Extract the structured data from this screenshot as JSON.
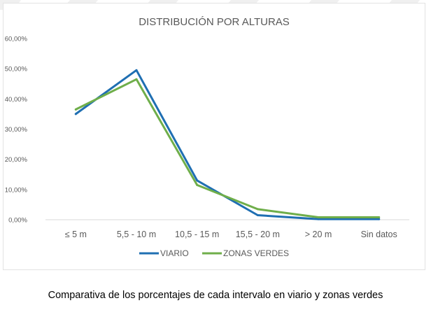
{
  "chart_data": {
    "type": "line",
    "title": "DISTRIBUCIÓN POR ALTURAS",
    "categories": [
      "≤ 5 m",
      "5,5 - 10 m",
      "10,5 - 15 m",
      "15,5 - 20 m",
      "> 20 m",
      "Sin datos"
    ],
    "y_ticks": [
      "0,00%",
      "10,00%",
      "20,00%",
      "30,00%",
      "40,00%",
      "50,00%",
      "60,00%"
    ],
    "ylim": [
      0,
      60
    ],
    "grid": false,
    "legend_position": "bottom",
    "series": [
      {
        "name": "VIARIO",
        "values": [
          35.0,
          49.5,
          13.0,
          1.5,
          0.2,
          0.2
        ],
        "color": "#1f6fb2"
      },
      {
        "name": "ZONAS VERDES",
        "values": [
          36.5,
          46.5,
          11.5,
          3.5,
          0.8,
          0.8
        ],
        "color": "#6fae4a"
      }
    ]
  },
  "caption": "Comparativa de los porcentajes de cada intervalo en viario y zonas verdes"
}
